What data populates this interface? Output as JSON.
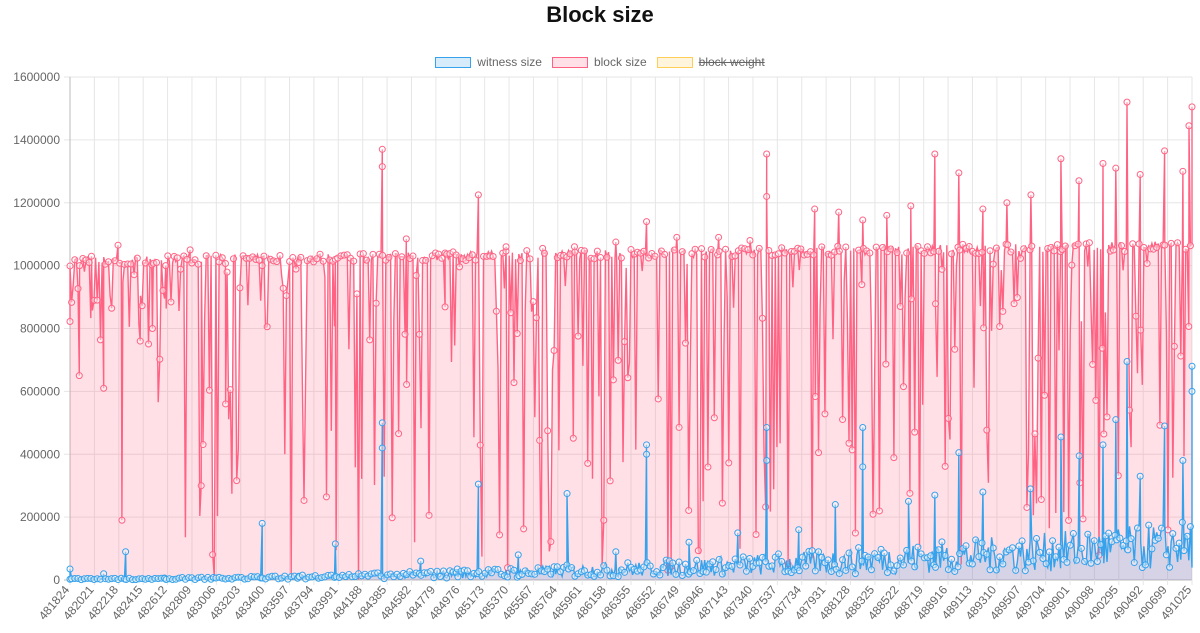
{
  "chart_data": {
    "type": "line",
    "title": "Block size",
    "xlabel": "",
    "ylabel": "",
    "ylim": [
      0,
      1600000
    ],
    "y_ticks": [
      "0",
      "200000",
      "400000",
      "600000",
      "800000",
      "1000000",
      "1200000",
      "1400000",
      "1600000"
    ],
    "x_ticks": [
      "481824",
      "482021",
      "482218",
      "482415",
      "482612",
      "482809",
      "483006",
      "483203",
      "483400",
      "483597",
      "483794",
      "483991",
      "484188",
      "484385",
      "484582",
      "484779",
      "484976",
      "485173",
      "485370",
      "485567",
      "485764",
      "485961",
      "486158",
      "486355",
      "486552",
      "486749",
      "486946",
      "487143",
      "487340",
      "487537",
      "487734",
      "487931",
      "488128",
      "488325",
      "488522",
      "488719",
      "488916",
      "489113",
      "489310",
      "489507",
      "489704",
      "489901",
      "490098",
      "490295",
      "490492",
      "490699",
      "491025"
    ],
    "xlim": [
      481824,
      491025
    ],
    "grid": true,
    "legend_position": "top",
    "series": [
      {
        "name": "witness size",
        "color": "#36a2eb",
        "fill": "rgba(54,162,235,0.2)",
        "hidden": false,
        "points": [
          [
            481824,
            35000
          ],
          [
            482100,
            20000
          ],
          [
            482280,
            90000
          ],
          [
            482600,
            5000
          ],
          [
            483000,
            8000
          ],
          [
            483400,
            180000
          ],
          [
            483700,
            12000
          ],
          [
            484000,
            115000
          ],
          [
            484385,
            500000
          ],
          [
            484385,
            420000
          ],
          [
            484700,
            60000
          ],
          [
            485000,
            35000
          ],
          [
            485173,
            305000
          ],
          [
            485500,
            80000
          ],
          [
            485900,
            275000
          ],
          [
            486300,
            90000
          ],
          [
            486552,
            430000
          ],
          [
            486552,
            400000
          ],
          [
            486900,
            120000
          ],
          [
            487300,
            150000
          ],
          [
            487537,
            485000
          ],
          [
            487537,
            380000
          ],
          [
            487800,
            160000
          ],
          [
            488100,
            240000
          ],
          [
            488325,
            485000
          ],
          [
            488325,
            360000
          ],
          [
            488700,
            250000
          ],
          [
            488916,
            270000
          ],
          [
            489113,
            405000
          ],
          [
            489310,
            280000
          ],
          [
            489700,
            290000
          ],
          [
            489950,
            455000
          ],
          [
            490100,
            395000
          ],
          [
            490295,
            430000
          ],
          [
            490400,
            510000
          ],
          [
            490492,
            695000
          ],
          [
            490600,
            330000
          ],
          [
            490800,
            490000
          ],
          [
            490950,
            380000
          ],
          [
            491025,
            600000
          ],
          [
            491025,
            680000
          ]
        ]
      },
      {
        "name": "block size",
        "color": "#ff6384",
        "fill": "rgba(255,99,132,0.2)",
        "hidden": false,
        "points": [
          [
            481824,
            999000
          ],
          [
            481900,
            650000
          ],
          [
            482000,
            1030000
          ],
          [
            482100,
            610000
          ],
          [
            482218,
            1065000
          ],
          [
            482250,
            190000
          ],
          [
            482400,
            760000
          ],
          [
            482500,
            800000
          ],
          [
            482609,
            1000000
          ],
          [
            482809,
            1050000
          ],
          [
            482900,
            300000
          ],
          [
            483100,
            560000
          ],
          [
            483400,
            1000000
          ],
          [
            483700,
            1010000
          ],
          [
            484000,
            1020000
          ],
          [
            484385,
            1370000
          ],
          [
            484385,
            1315000
          ],
          [
            484582,
            1085000
          ],
          [
            484900,
            1040000
          ],
          [
            485173,
            1225000
          ],
          [
            485400,
            1060000
          ],
          [
            485700,
            1055000
          ],
          [
            485961,
            1060000
          ],
          [
            486300,
            1075000
          ],
          [
            486552,
            1140000
          ],
          [
            486800,
            1090000
          ],
          [
            487143,
            1090000
          ],
          [
            487400,
            1080000
          ],
          [
            487537,
            1355000
          ],
          [
            487537,
            1220000
          ],
          [
            487931,
            1180000
          ],
          [
            488128,
            1170000
          ],
          [
            488325,
            1145000
          ],
          [
            488522,
            1160000
          ],
          [
            488719,
            1190000
          ],
          [
            488916,
            1355000
          ],
          [
            489113,
            1295000
          ],
          [
            489310,
            1180000
          ],
          [
            489507,
            1200000
          ],
          [
            489704,
            1225000
          ],
          [
            489950,
            1340000
          ],
          [
            490098,
            1270000
          ],
          [
            490295,
            1325000
          ],
          [
            490400,
            1310000
          ],
          [
            490492,
            1520000
          ],
          [
            490600,
            1290000
          ],
          [
            490800,
            1365000
          ],
          [
            490950,
            1300000
          ],
          [
            491025,
            1505000
          ],
          [
            491000,
            1445000
          ]
        ]
      },
      {
        "name": "block weight",
        "color": "#ffce56",
        "fill": "rgba(255,206,86,0.2)",
        "hidden": true,
        "points": []
      }
    ]
  }
}
